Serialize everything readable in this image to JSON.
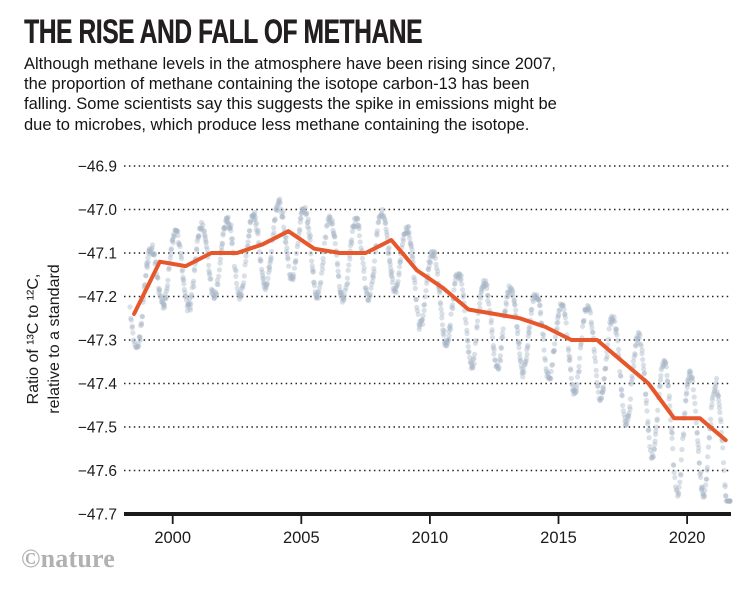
{
  "page": {
    "title": "THE RISE AND FALL OF METHANE",
    "description_lines": [
      "Although methane levels in the atmosphere have been rising since 2007,",
      "the proportion of methane containing the isotope carbon-13 has been",
      "falling. Some scientists say this suggests the spike in emissions might be",
      "due to microbes, which produce less methane containing the isotope."
    ],
    "brand": "©nature"
  },
  "chart_data": {
    "type": "scatter",
    "title": "THE RISE AND FALL OF METHANE",
    "xlabel": "",
    "ylabel": "Ratio of ¹³C to ¹²C, relative to a standard",
    "x_range": [
      1998.11,
      2021.71
    ],
    "y_range": [
      -47.7,
      -46.9
    ],
    "grid": "horizontal-dotted",
    "legend": "none",
    "y_axis": {
      "title_lines": [
        "Ratio of ¹³C to ¹²C,",
        "relative to a standard"
      ],
      "ticks": [
        {
          "label": "−46.9",
          "value": -46.9
        },
        {
          "label": "−47.0",
          "value": -47.0
        },
        {
          "label": "−47.1",
          "value": -47.1
        },
        {
          "label": "−47.2",
          "value": -47.2
        },
        {
          "label": "−47.3",
          "value": -47.3
        },
        {
          "label": "−47.4",
          "value": -47.4
        },
        {
          "label": "−47.5",
          "value": -47.5
        },
        {
          "label": "−47.6",
          "value": -47.6
        },
        {
          "label": "−47.7",
          "value": -47.7
        }
      ],
      "baseline_value": -47.7
    },
    "x_axis": {
      "ticks": [
        {
          "label": "2000",
          "year": 2000
        },
        {
          "label": "2005",
          "year": 2005
        },
        {
          "label": "2010",
          "year": 2010
        },
        {
          "label": "2015",
          "year": 2015
        },
        {
          "label": "2020",
          "year": 2020
        }
      ]
    },
    "trend_series": {
      "name": "annual-mean-trend",
      "color": "#E6572B",
      "width": 4,
      "points": [
        [
          1998.5,
          -47.24
        ],
        [
          1999.5,
          -47.12
        ],
        [
          2000.5,
          -47.13
        ],
        [
          2001.5,
          -47.1
        ],
        [
          2002.5,
          -47.1
        ],
        [
          2003.5,
          -47.08
        ],
        [
          2004.5,
          -47.05
        ],
        [
          2005.5,
          -47.09
        ],
        [
          2006.5,
          -47.1
        ],
        [
          2007.5,
          -47.1
        ],
        [
          2008.5,
          -47.07
        ],
        [
          2009.5,
          -47.14
        ],
        [
          2010.5,
          -47.18
        ],
        [
          2011.5,
          -47.23
        ],
        [
          2012.5,
          -47.24
        ],
        [
          2013.5,
          -47.25
        ],
        [
          2014.5,
          -47.27
        ],
        [
          2015.5,
          -47.3
        ],
        [
          2016.5,
          -47.3
        ],
        [
          2017.5,
          -47.35
        ],
        [
          2018.5,
          -47.4
        ],
        [
          2019.5,
          -47.48
        ],
        [
          2020.5,
          -47.48
        ],
        [
          2021.5,
          -47.53
        ]
      ]
    },
    "scatter_series": {
      "name": "individual-measurements",
      "color": "#a8b6c6",
      "opacity": 0.42,
      "radius": 2.6,
      "model": {
        "description": "Seasonal oscillation around the annual trend: v(t)=trend(t)+A(t)*cos(2pi*(t-phase))-E(t)*((1-cos)/2)^2, peaks near -47.0 early (2002-2008), deep troughs to about -47.65 in 2019-2021",
        "t_start": 1998.34,
        "t_end": 2021.72,
        "t_step": 0.0278,
        "phase_peak": 0.12,
        "amplitude_anchors": [
          [
            1998,
            0.075
          ],
          [
            2008,
            0.075
          ],
          [
            2011,
            0.06
          ],
          [
            2015,
            0.07
          ],
          [
            2018,
            0.09
          ],
          [
            2021,
            0.105
          ]
        ],
        "trough_extra_anchors": [
          [
            1998,
            0.02
          ],
          [
            2008,
            0.035
          ],
          [
            2011,
            0.07
          ],
          [
            2015,
            0.045
          ],
          [
            2018,
            0.05
          ],
          [
            2019,
            0.08
          ],
          [
            2021,
            0.065
          ]
        ],
        "jitter": 0.016,
        "floor": -47.67
      }
    }
  }
}
